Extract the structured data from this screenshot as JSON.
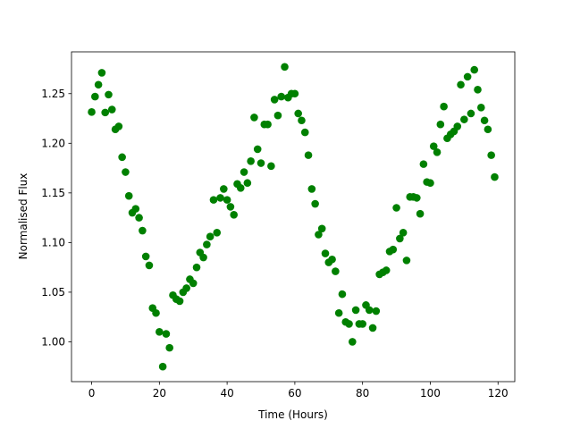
{
  "chart_data": {
    "type": "scatter",
    "xlabel": "Time (Hours)",
    "ylabel": "Normalised Flux",
    "color": "#008000",
    "x": [
      0,
      1,
      2,
      3,
      4,
      5,
      6,
      7,
      8,
      9,
      10,
      11,
      12,
      13,
      14,
      15,
      16,
      17,
      18,
      19,
      20,
      21,
      22,
      23,
      24,
      25,
      26,
      27,
      28,
      29,
      30,
      31,
      32,
      33,
      34,
      35,
      36,
      37,
      38,
      39,
      40,
      41,
      42,
      43,
      44,
      45,
      46,
      47,
      48,
      49,
      50,
      51,
      52,
      53,
      54,
      55,
      56,
      57,
      58,
      59,
      60,
      61,
      62,
      63,
      64,
      65,
      66,
      67,
      68,
      69,
      70,
      71,
      72,
      73,
      74,
      75,
      76,
      77,
      78,
      79,
      80,
      81,
      82,
      83,
      84,
      85,
      86,
      87,
      88,
      89,
      90,
      91,
      92,
      93,
      94,
      95,
      96,
      97,
      98,
      99,
      100,
      101,
      102,
      103,
      104,
      105,
      106,
      107,
      108,
      109,
      110,
      111,
      112,
      113,
      114,
      115,
      116,
      117,
      118,
      119
    ],
    "values": [
      1.2315,
      1.247,
      1.259,
      1.271,
      1.231,
      1.249,
      1.234,
      1.214,
      1.217,
      1.186,
      1.171,
      1.147,
      1.13,
      1.134,
      1.125,
      1.112,
      1.086,
      1.077,
      1.034,
      1.029,
      1.01,
      0.975,
      1.008,
      0.994,
      1.047,
      1.043,
      1.041,
      1.05,
      1.054,
      1.063,
      1.059,
      1.075,
      1.09,
      1.085,
      1.098,
      1.106,
      1.143,
      1.11,
      1.145,
      1.154,
      1.143,
      1.136,
      1.128,
      1.159,
      1.155,
      1.171,
      1.16,
      1.182,
      1.226,
      1.194,
      1.18,
      1.219,
      1.219,
      1.177,
      1.244,
      1.228,
      1.247,
      1.277,
      1.246,
      1.25,
      1.25,
      1.23,
      1.223,
      1.211,
      1.188,
      1.154,
      1.139,
      1.108,
      1.114,
      1.089,
      1.08,
      1.083,
      1.071,
      1.029,
      1.048,
      1.02,
      1.018,
      1.0,
      1.032,
      1.018,
      1.018,
      1.037,
      1.032,
      1.014,
      1.031,
      1.068,
      1.07,
      1.072,
      1.091,
      1.093,
      1.135,
      1.104,
      1.11,
      1.082,
      1.146,
      1.146,
      1.145,
      1.129,
      1.179,
      1.161,
      1.16,
      1.197,
      1.191,
      1.219,
      1.237,
      1.205,
      1.209,
      1.212,
      1.217,
      1.259,
      1.224,
      1.267,
      1.23,
      1.274,
      1.254,
      1.236,
      1.223,
      1.214,
      1.188,
      1.166
    ],
    "xlim": [
      -5.95,
      124.95
    ],
    "xticks": [
      0,
      20,
      40,
      60,
      80,
      100,
      120
    ],
    "ylim": [
      0.9599,
      1.2921
    ],
    "yticks": [
      {
        "value": 1.0,
        "label": "1.00"
      },
      1.05,
      {
        "value": 1.1,
        "label": "1.10"
      },
      1.15,
      {
        "value": 1.2,
        "label": "1.20"
      },
      1.25
    ]
  }
}
